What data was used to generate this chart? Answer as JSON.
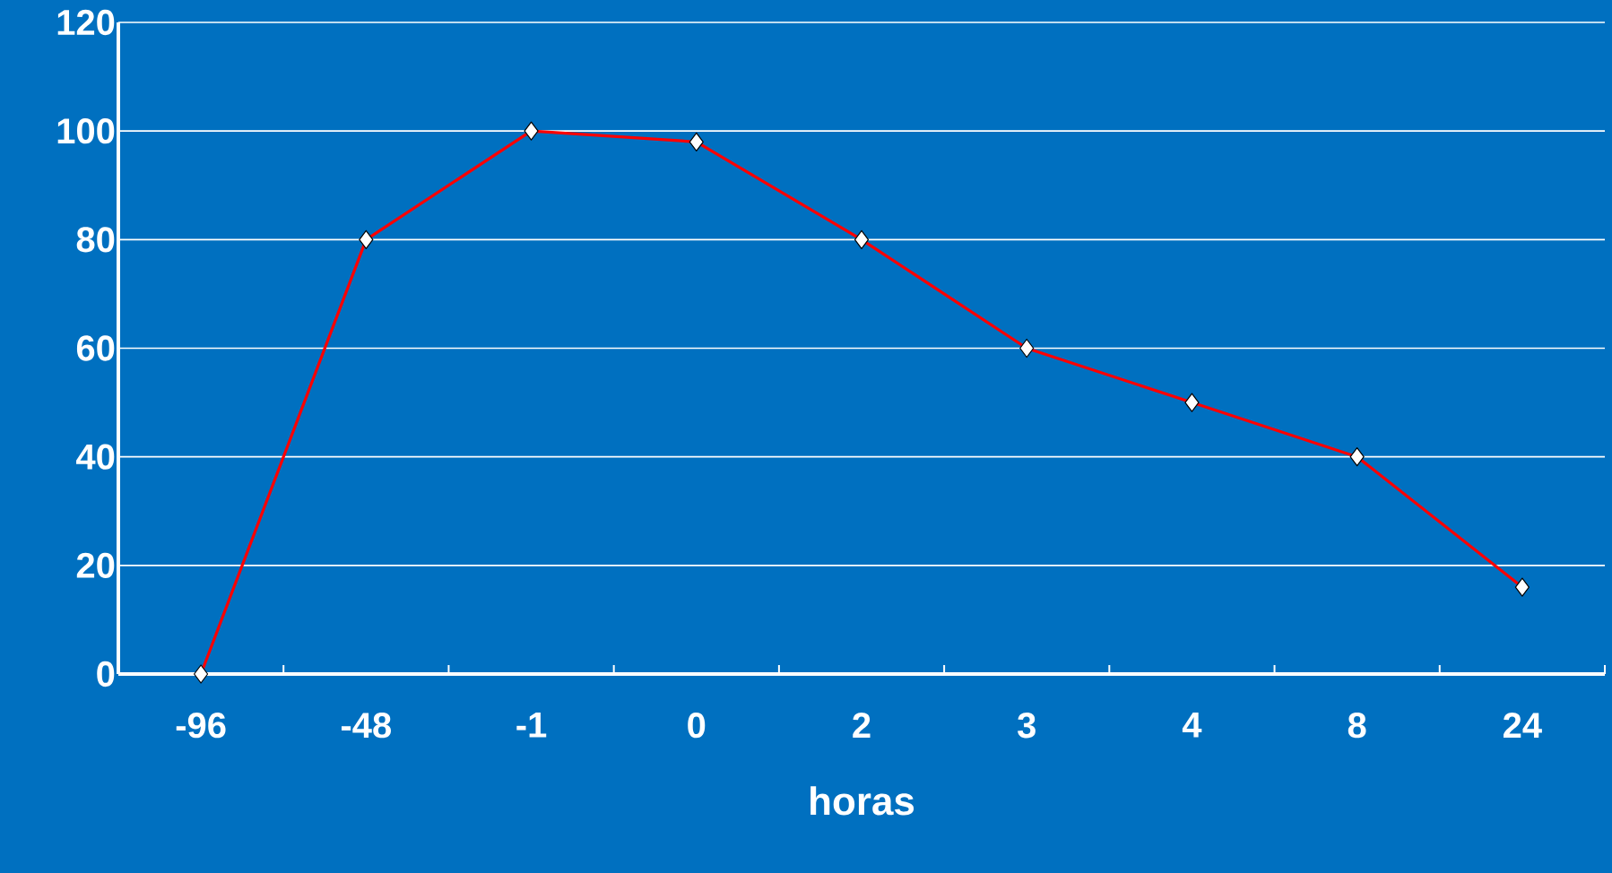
{
  "chart_data": {
    "type": "line",
    "xlabel": "horas",
    "categories": [
      "-96",
      "-48",
      "-1",
      "0",
      "2",
      "3",
      "4",
      "8",
      "24"
    ],
    "values": [
      0,
      80,
      100,
      98,
      80,
      60,
      50,
      40,
      16
    ],
    "color": "#ff0000",
    "ylim": [
      0,
      120
    ],
    "yticks": [
      0,
      20,
      40,
      60,
      80,
      100,
      120
    ],
    "grid": "y",
    "marker": "diamond",
    "line_style": "solid"
  }
}
